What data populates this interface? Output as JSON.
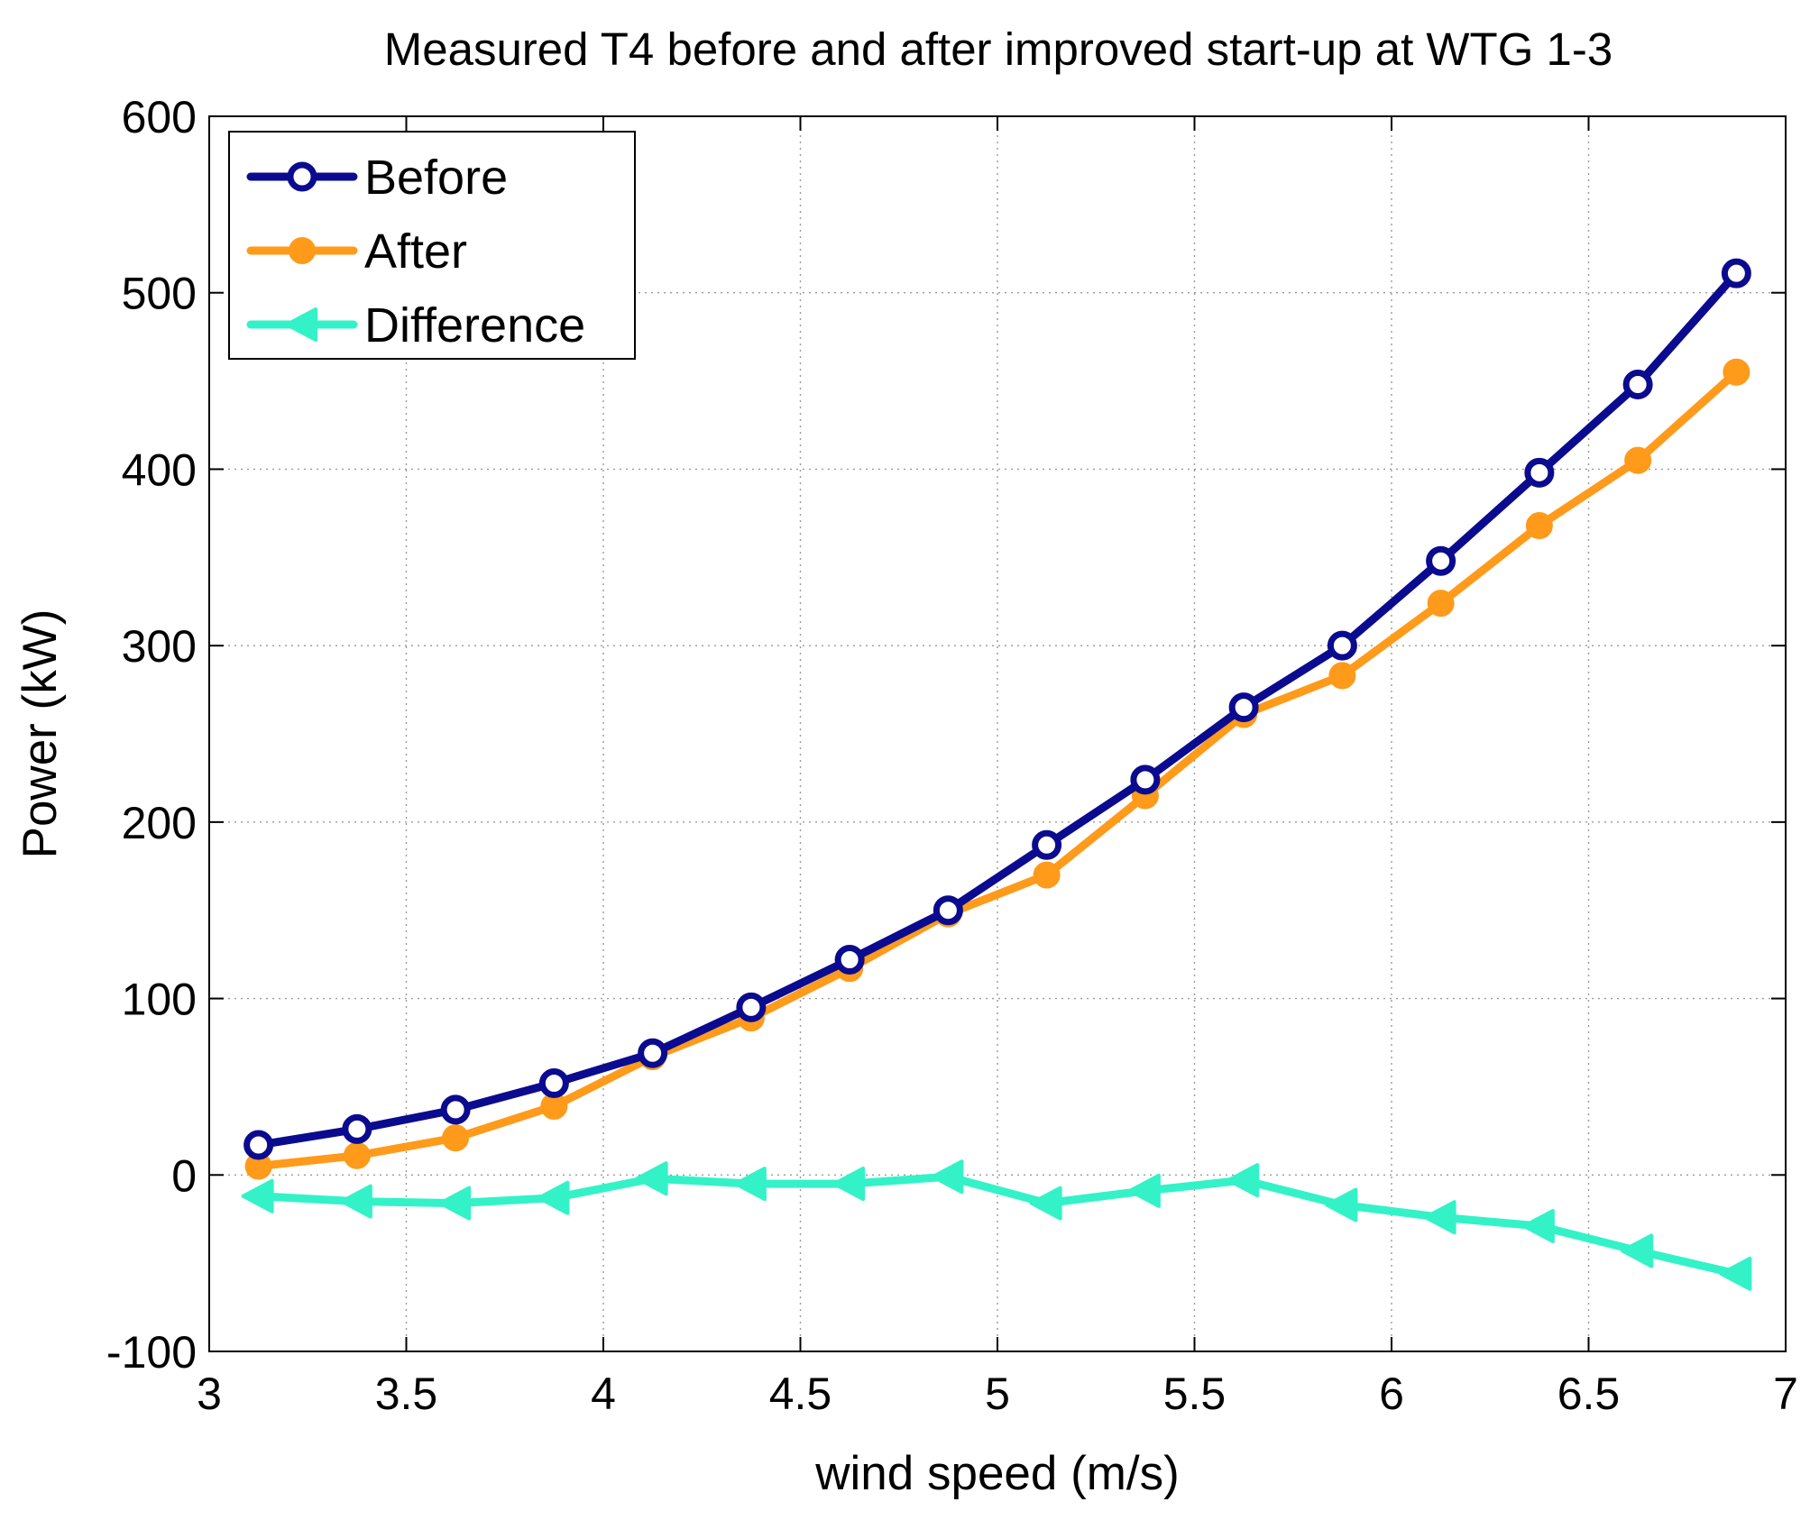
{
  "chart_data": {
    "type": "line",
    "title": "Measured T4 before and after improved start-up at WTG 1-3",
    "xlabel": "wind speed (m/s)",
    "ylabel": "Power (kW)",
    "xlim": [
      3,
      7
    ],
    "ylim": [
      -100,
      600
    ],
    "xticks": [
      3,
      3.5,
      4,
      4.5,
      5,
      5.5,
      6,
      6.5,
      7
    ],
    "xtick_labels": [
      "3",
      "3.5",
      "4",
      "4.5",
      "5",
      "5.5",
      "6",
      "6.5",
      "7"
    ],
    "yticks": [
      -100,
      0,
      100,
      200,
      300,
      400,
      500,
      600
    ],
    "ytick_labels": [
      "-100",
      "0",
      "100",
      "200",
      "300",
      "400",
      "500",
      "600"
    ],
    "grid": true,
    "legend_position": "top-left",
    "x": [
      3.125,
      3.375,
      3.625,
      3.875,
      4.125,
      4.375,
      4.625,
      4.875,
      5.125,
      5.375,
      5.625,
      5.875,
      6.125,
      6.375,
      6.625,
      6.875
    ],
    "series": [
      {
        "name": "Before",
        "color": "#0b0b8f",
        "marker": "circle-open",
        "values": [
          17,
          26,
          37,
          52,
          69,
          95,
          122,
          150,
          187,
          224,
          265,
          300,
          348,
          398,
          448,
          511
        ]
      },
      {
        "name": "After",
        "color": "#ff9a1a",
        "marker": "circle-filled",
        "values": [
          5,
          11,
          21,
          39,
          67,
          89,
          117,
          148,
          170,
          215,
          261,
          283,
          324,
          368,
          405,
          455
        ]
      },
      {
        "name": "Difference",
        "color": "#33f2c8",
        "marker": "triangle-left",
        "values": [
          -12,
          -15,
          -16,
          -13,
          -2,
          -5,
          -5,
          -1,
          -16,
          -9,
          -3,
          -17,
          -24,
          -29,
          -43,
          -56
        ]
      }
    ]
  }
}
